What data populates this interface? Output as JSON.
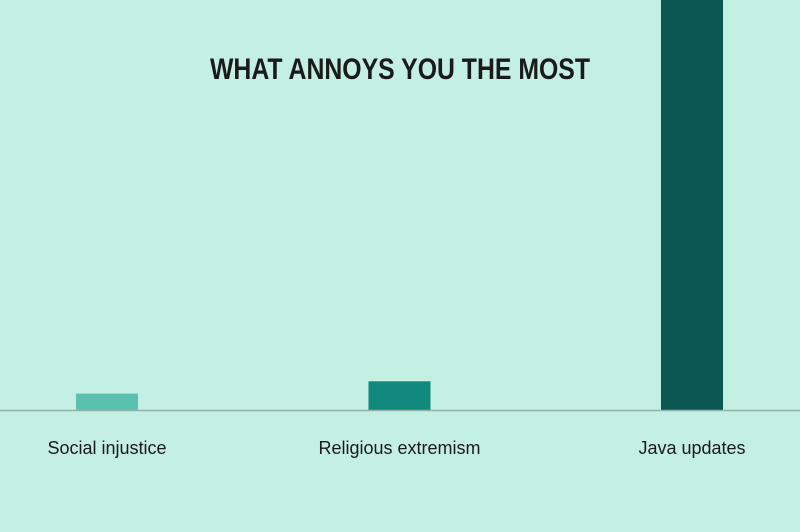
{
  "chart_data": {
    "type": "bar",
    "title": "WHAT ANNOYS YOU THE MOST",
    "categories": [
      "Social injustice",
      "Religious extremism",
      "Java updates"
    ],
    "values": [
      4,
      7,
      100
    ],
    "colors": [
      "#5cc0b0",
      "#10897c",
      "#0b5653"
    ],
    "ylim": [
      0,
      100
    ]
  }
}
